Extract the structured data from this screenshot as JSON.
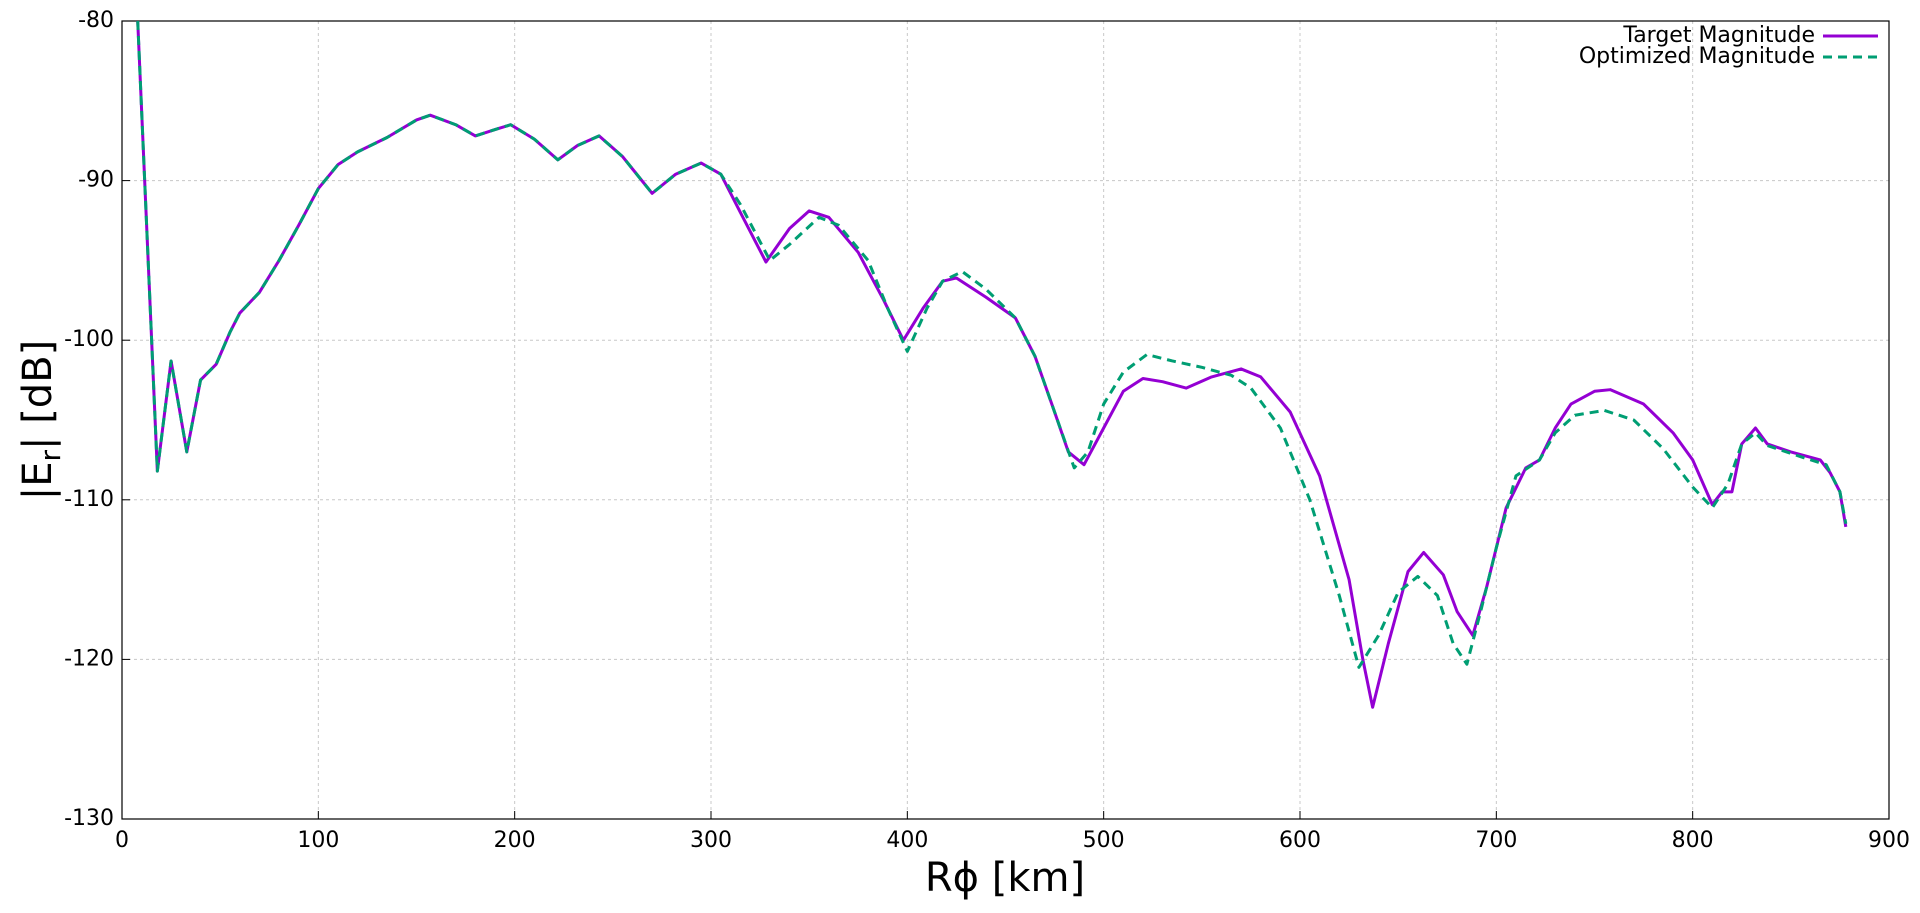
{
  "chart_data": {
    "type": "line",
    "xlabel": "Rϕ [km]",
    "ylabel": [
      "|E",
      "r",
      "| [dB]"
    ],
    "xlim": [
      0,
      900
    ],
    "xticks": [
      0,
      100,
      200,
      300,
      400,
      500,
      600,
      700,
      800,
      900
    ],
    "ylim": [
      -130,
      -80
    ],
    "yticks": [
      -130,
      -120,
      -110,
      -100,
      -90,
      -80
    ],
    "grid": true,
    "legend": "top-right",
    "series": [
      {
        "name": "Target Magnitude",
        "color": "#9400d3",
        "dashed": false,
        "x": [
          8,
          18,
          25,
          33,
          40,
          48,
          55,
          60,
          70,
          80,
          90,
          100,
          110,
          120,
          135,
          150,
          157,
          170,
          180,
          190,
          198,
          210,
          222,
          232,
          243,
          255,
          270,
          282,
          295,
          305,
          315,
          328,
          340,
          350,
          360,
          375,
          388,
          398,
          408,
          418,
          425,
          440,
          455,
          465,
          475,
          482,
          490,
          500,
          510,
          520,
          530,
          542,
          555,
          570,
          580,
          595,
          610,
          625,
          632,
          637,
          645,
          655,
          663,
          673,
          680,
          688,
          695,
          705,
          715,
          722,
          730,
          738,
          750,
          758,
          775,
          790,
          800,
          810,
          815,
          820,
          825,
          832,
          838,
          850,
          865,
          870,
          875,
          878
        ],
        "values": [
          -80,
          -108.2,
          -101.3,
          -107,
          -102.5,
          -101.5,
          -99.5,
          -98.3,
          -97,
          -95,
          -92.8,
          -90.5,
          -89,
          -88.2,
          -87.3,
          -86.2,
          -85.9,
          -86.5,
          -87.2,
          -86.8,
          -86.5,
          -87.4,
          -88.7,
          -87.8,
          -87.2,
          -88.5,
          -90.8,
          -89.6,
          -88.9,
          -89.6,
          -92,
          -95.1,
          -93,
          -91.9,
          -92.3,
          -94.5,
          -97.5,
          -100,
          -98,
          -96.3,
          -96.1,
          -97.3,
          -98.6,
          -101,
          -104.5,
          -107,
          -107.8,
          -105.5,
          -103.2,
          -102.4,
          -102.6,
          -103,
          -102.3,
          -101.8,
          -102.3,
          -104.5,
          -108.5,
          -115,
          -120,
          -123,
          -119,
          -114.5,
          -113.3,
          -114.7,
          -117,
          -118.5,
          -115.5,
          -110.5,
          -108,
          -107.5,
          -105.5,
          -104,
          -103.2,
          -103.1,
          -104,
          -105.8,
          -107.5,
          -110.3,
          -109.5,
          -109.5,
          -106.5,
          -105.5,
          -106.5,
          -107,
          -107.5,
          -108.3,
          -109.5,
          -111.7
        ]
      },
      {
        "name": "Optimized Magnitude",
        "color": "#009e73",
        "dashed": true,
        "x": [
          8,
          18,
          25,
          33,
          40,
          48,
          55,
          60,
          70,
          80,
          90,
          100,
          110,
          120,
          135,
          150,
          157,
          170,
          180,
          190,
          198,
          210,
          222,
          232,
          243,
          255,
          270,
          282,
          295,
          305,
          315,
          330,
          340,
          355,
          365,
          380,
          390,
          400,
          410,
          418,
          428,
          440,
          455,
          465,
          475,
          485,
          492,
          500,
          510,
          522,
          535,
          550,
          565,
          575,
          590,
          605,
          620,
          630,
          640,
          650,
          660,
          670,
          678,
          685,
          692,
          700,
          710,
          722,
          730,
          740,
          755,
          770,
          785,
          800,
          810,
          818,
          825,
          832,
          838,
          855,
          868,
          875,
          878
        ],
        "values": [
          -80,
          -108.2,
          -101.3,
          -107,
          -102.5,
          -101.5,
          -99.5,
          -98.3,
          -97,
          -95,
          -92.8,
          -90.5,
          -89,
          -88.2,
          -87.3,
          -86.2,
          -85.9,
          -86.5,
          -87.2,
          -86.8,
          -86.5,
          -87.4,
          -88.7,
          -87.8,
          -87.2,
          -88.5,
          -90.8,
          -89.6,
          -88.9,
          -89.6,
          -91.5,
          -95,
          -94,
          -92.3,
          -92.8,
          -95,
          -98,
          -100.7,
          -98,
          -96.3,
          -95.7,
          -96.8,
          -98.6,
          -101,
          -104.5,
          -108,
          -107,
          -104,
          -102,
          -100.9,
          -101.3,
          -101.7,
          -102.2,
          -103,
          -105.5,
          -110,
          -116,
          -120.5,
          -118.5,
          -115.8,
          -114.8,
          -116,
          -119,
          -120.3,
          -117,
          -113,
          -108.5,
          -107.5,
          -105.8,
          -104.7,
          -104.4,
          -105,
          -106.8,
          -109.2,
          -110.5,
          -109,
          -106.5,
          -105.8,
          -106.6,
          -107.3,
          -107.8,
          -109.5,
          -111.5
        ]
      }
    ]
  }
}
